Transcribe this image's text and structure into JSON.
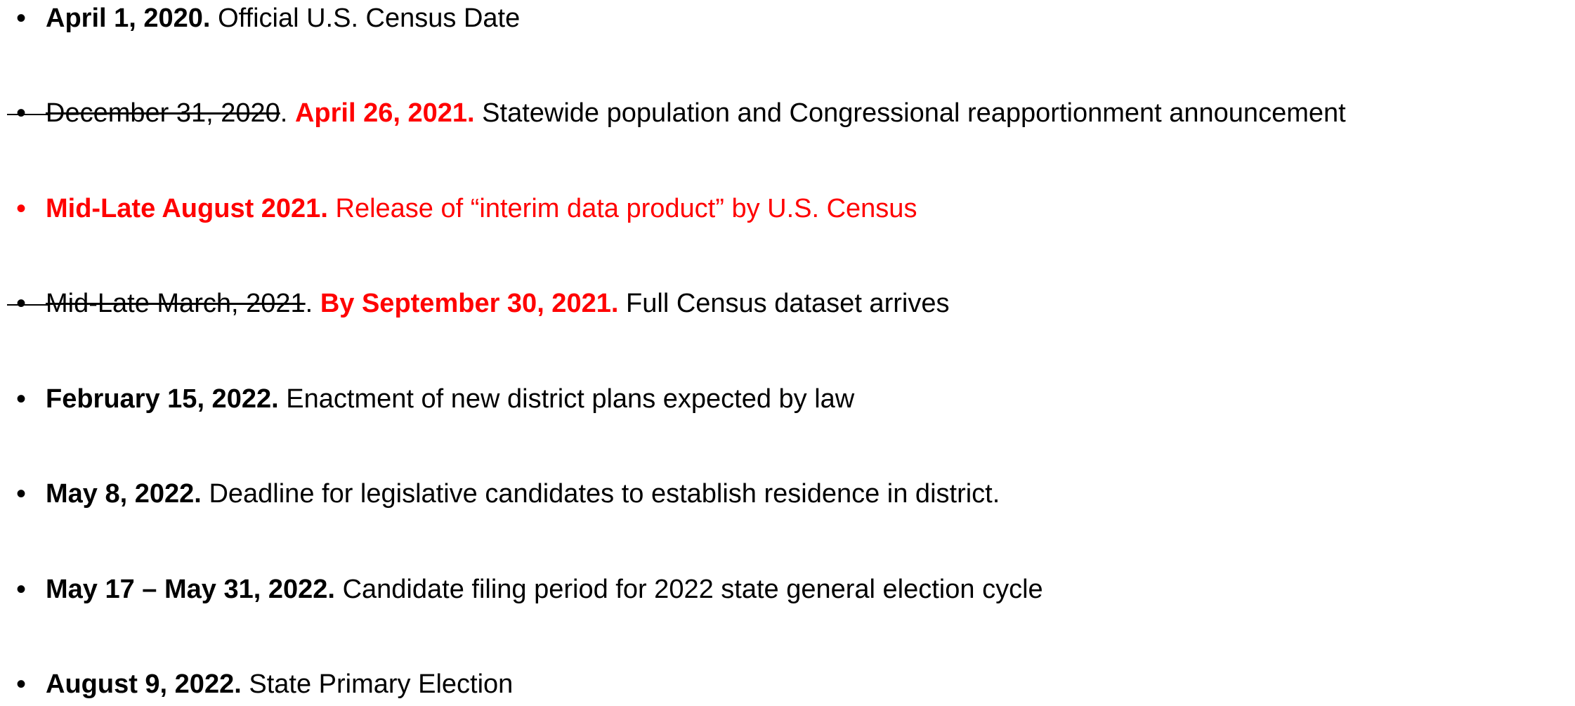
{
  "items": [
    {
      "segments": [
        {
          "text": "April 1, 2020.",
          "style": "bold"
        },
        {
          "text": "Official U.S. Census Date",
          "style": "plain"
        }
      ]
    },
    {
      "segments": [
        {
          "text": "December 31, 2020",
          "style": "strike"
        },
        {
          "text": ".",
          "style": "plain"
        },
        {
          "text": "April 26, 2021.",
          "style": "red-bold"
        },
        {
          "text": "Statewide population and Congressional reapportionment announcement",
          "style": "plain"
        }
      ]
    },
    {
      "segments": [
        {
          "text": "Mid-Late August 2021.",
          "style": "red-bold"
        },
        {
          "text": "Release of “interim data product” by U.S. Census",
          "style": "red"
        }
      ]
    },
    {
      "segments": [
        {
          "text": "Mid-Late March, 2021",
          "style": "strike"
        },
        {
          "text": ".",
          "style": "plain"
        },
        {
          "text": "By September 30, 2021.",
          "style": "red-bold"
        },
        {
          "text": "Full Census dataset arrives",
          "style": "plain"
        }
      ]
    },
    {
      "segments": [
        {
          "text": "February 15, 2022.",
          "style": "bold"
        },
        {
          "text": "Enactment of new district plans expected by law",
          "style": "plain"
        }
      ]
    },
    {
      "segments": [
        {
          "text": "May 8, 2022.",
          "style": "bold"
        },
        {
          "text": "Deadline for legislative candidates to establish residence in district.",
          "style": "plain"
        }
      ]
    },
    {
      "segments": [
        {
          "text": "May 17 – May 31, 2022.",
          "style": "bold"
        },
        {
          "text": "Candidate filing period for 2022 state general election cycle",
          "style": "plain"
        }
      ]
    },
    {
      "segments": [
        {
          "text": "August 9, 2022.",
          "style": "bold"
        },
        {
          "text": "State Primary Election",
          "style": "plain"
        }
      ]
    }
  ]
}
